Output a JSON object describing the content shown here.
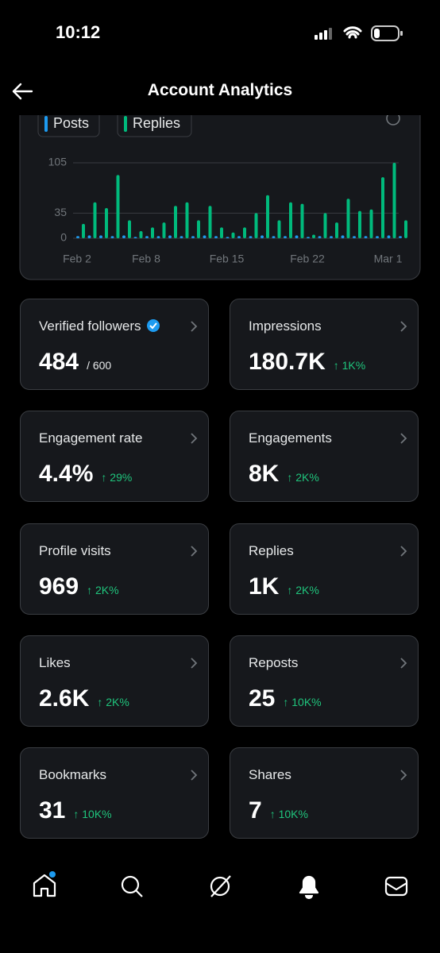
{
  "status_bar": {
    "time": "10:12"
  },
  "header": {
    "title": "Account Analytics"
  },
  "chart_data": {
    "type": "bar",
    "categories": [
      "Feb 2",
      null,
      null,
      null,
      null,
      null,
      "Feb 8",
      null,
      null,
      null,
      null,
      null,
      null,
      "Feb 15",
      null,
      null,
      null,
      null,
      null,
      null,
      "Feb 22",
      null,
      null,
      null,
      null,
      null,
      null,
      "Mar 1",
      null
    ],
    "series": [
      {
        "name": "Posts",
        "color": "#1d9bf0",
        "values": [
          3,
          4,
          4,
          3,
          4,
          2,
          3,
          3,
          4,
          3,
          3,
          4,
          3,
          2,
          3,
          3,
          4,
          3,
          3,
          4,
          2,
          3,
          3,
          4,
          3,
          3,
          3,
          4,
          3
        ]
      },
      {
        "name": "Replies",
        "color": "#00ba7c",
        "values": [
          20,
          50,
          42,
          88,
          25,
          10,
          15,
          22,
          45,
          50,
          25,
          45,
          15,
          8,
          15,
          35,
          60,
          25,
          50,
          48,
          5,
          35,
          22,
          55,
          38,
          40,
          85,
          105,
          25
        ]
      }
    ],
    "ylim": [
      0,
      105
    ],
    "yticks": [
      0,
      35,
      105
    ],
    "grid": true
  },
  "cards": [
    {
      "label": "Verified followers",
      "value": "484",
      "sub": "/ 600"
    },
    {
      "label": "Impressions",
      "value": "180.7K",
      "change": "↑ 1K%"
    },
    {
      "label": "Engagement rate",
      "value": "4.4%",
      "change": "↑ 29%"
    },
    {
      "label": "Engagements",
      "value": "8K",
      "change": "↑ 2K%"
    },
    {
      "label": "Profile visits",
      "value": "969",
      "change": "↑ 2K%"
    },
    {
      "label": "Replies",
      "value": "1K",
      "change": "↑ 2K%"
    },
    {
      "label": "Likes",
      "value": "2.6K",
      "change": "↑ 2K%"
    },
    {
      "label": "Reposts",
      "value": "25",
      "change": "↑ 10K%"
    },
    {
      "label": "Bookmarks",
      "value": "31",
      "change": "↑ 10K%"
    },
    {
      "label": "Shares",
      "value": "7",
      "change": "↑ 10K%"
    }
  ]
}
